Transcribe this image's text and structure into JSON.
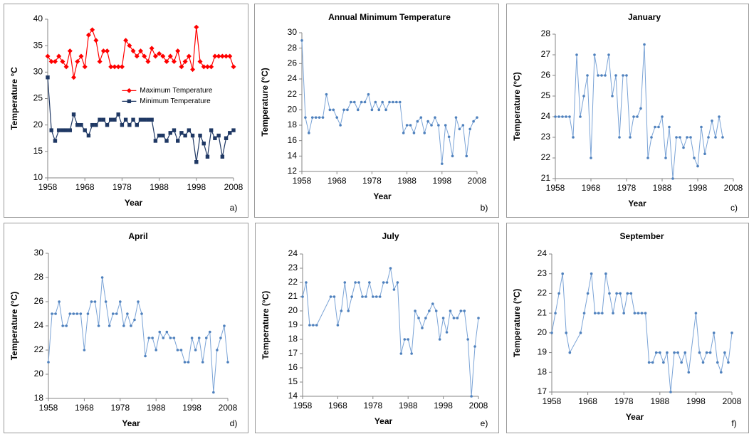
{
  "chart_data": [
    {
      "type": "line",
      "panel_label": "a)",
      "x_label": "Year",
      "y_label": "Temperature °C",
      "legend": "center",
      "x": [
        1958,
        1959,
        1960,
        1961,
        1962,
        1963,
        1964,
        1965,
        1966,
        1967,
        1968,
        1969,
        1970,
        1971,
        1972,
        1973,
        1974,
        1975,
        1976,
        1977,
        1978,
        1979,
        1980,
        1981,
        1982,
        1983,
        1984,
        1985,
        1986,
        1987,
        1988,
        1989,
        1990,
        1991,
        1992,
        1993,
        1994,
        1995,
        1996,
        1997,
        1998,
        1999,
        2000,
        2001,
        2002,
        2003,
        2004,
        2005,
        2006,
        2007,
        2008
      ],
      "series": [
        {
          "name": "Maximum Temperature",
          "color": "#ff0000",
          "marker": "diamond",
          "values": [
            33,
            32,
            32,
            33,
            32,
            31,
            34,
            29,
            32,
            33,
            31,
            37,
            38,
            36,
            32,
            34,
            34,
            31,
            31,
            31,
            31,
            36,
            35,
            34,
            33,
            34,
            33,
            32,
            34.5,
            33,
            33.5,
            33,
            32,
            33,
            32,
            34,
            31,
            32,
            33,
            30.5,
            38.5,
            32,
            31,
            31,
            31,
            33,
            33,
            33,
            33,
            33,
            31
          ]
        },
        {
          "name": "Minimum Temperature",
          "color": "#1f3864",
          "marker": "square",
          "values": [
            29,
            19,
            17,
            19,
            19,
            19,
            19,
            22,
            20,
            20,
            19,
            18,
            20,
            20,
            21,
            21,
            20,
            21,
            21,
            22,
            20,
            21,
            20,
            21,
            20,
            21,
            21,
            21,
            21,
            17,
            18,
            18,
            17,
            18.5,
            19,
            17,
            18.5,
            18,
            19,
            18,
            13,
            18,
            16.5,
            14,
            19,
            17.5,
            18,
            14,
            17.5,
            18.5,
            19
          ]
        }
      ],
      "xlim": [
        1958,
        2008
      ],
      "xticks": [
        1958,
        1968,
        1978,
        1988,
        1998,
        2008
      ],
      "ylim": [
        10,
        40
      ],
      "yticks": [
        10,
        15,
        20,
        25,
        30,
        35,
        40
      ]
    },
    {
      "type": "line",
      "title": "Annual Minimum Temperature",
      "panel_label": "b)",
      "x_label": "Year",
      "y_label": "Temperature  (°C)",
      "x": [
        1958,
        1959,
        1960,
        1961,
        1962,
        1963,
        1964,
        1965,
        1966,
        1967,
        1968,
        1969,
        1970,
        1971,
        1972,
        1973,
        1974,
        1975,
        1976,
        1977,
        1978,
        1979,
        1980,
        1981,
        1982,
        1983,
        1984,
        1985,
        1986,
        1987,
        1988,
        1989,
        1990,
        1991,
        1992,
        1993,
        1994,
        1995,
        1996,
        1997,
        1998,
        1999,
        2000,
        2001,
        2002,
        2003,
        2004,
        2005,
        2006,
        2007,
        2008
      ],
      "series": [
        {
          "color": "#7aa3d6",
          "marker": "circle",
          "values": [
            29,
            19,
            17,
            19,
            19,
            19,
            19,
            22,
            20,
            20,
            19,
            18,
            20,
            20,
            21,
            21,
            20,
            21,
            21,
            22,
            20,
            21,
            20,
            21,
            20,
            21,
            21,
            21,
            21,
            17,
            18,
            18,
            17,
            18.5,
            19,
            17,
            18.5,
            18,
            19,
            18,
            13,
            18,
            16.5,
            14,
            19,
            17.5,
            18,
            14,
            17.5,
            18.5,
            19
          ]
        }
      ],
      "xlim": [
        1958,
        2008
      ],
      "xticks": [
        1958,
        1968,
        1978,
        1988,
        1998,
        2008
      ],
      "ylim": [
        12,
        30
      ],
      "yticks": [
        12,
        14,
        16,
        18,
        20,
        22,
        24,
        26,
        28,
        30
      ]
    },
    {
      "type": "line",
      "title": "January",
      "panel_label": "c)",
      "x_label": "Year",
      "y_label": "Temperature (°C)",
      "x": [
        1958,
        1959,
        1960,
        1961,
        1962,
        1963,
        1964,
        1965,
        1966,
        1967,
        1968,
        1969,
        1970,
        1971,
        1972,
        1973,
        1974,
        1975,
        1976,
        1977,
        1978,
        1979,
        1980,
        1981,
        1982,
        1983,
        1984,
        1985,
        1986,
        1987,
        1988,
        1989,
        1990,
        1991,
        1992,
        1993,
        1994,
        1995,
        1996,
        1997,
        1998,
        1999,
        2000,
        2001,
        2002,
        2003,
        2004,
        2005
      ],
      "series": [
        {
          "color": "#7aa3d6",
          "marker": "circle",
          "values": [
            24,
            24,
            24,
            24,
            24,
            23,
            27,
            24,
            25,
            26,
            22,
            27,
            26,
            26,
            26,
            27,
            25,
            26,
            23,
            26,
            26,
            23,
            24,
            24,
            24.4,
            27.5,
            22,
            23,
            23.5,
            23.5,
            24,
            22,
            23.5,
            21,
            23,
            23,
            22.5,
            23,
            23,
            22,
            21.6,
            23.5,
            22.2,
            23,
            23.8,
            23,
            24,
            23
          ]
        }
      ],
      "xlim": [
        1958,
        2008
      ],
      "xticks": [
        1958,
        1968,
        1978,
        1988,
        1998,
        2008
      ],
      "ylim": [
        21,
        28
      ],
      "yticks": [
        21,
        22,
        23,
        24,
        25,
        26,
        27,
        28
      ]
    },
    {
      "type": "line",
      "title": "April",
      "panel_label": "d)",
      "x_label": "Year",
      "y_label": "Temperature (°C)",
      "x": [
        1958,
        1959,
        1960,
        1961,
        1962,
        1963,
        1964,
        1965,
        1966,
        1967,
        1968,
        1969,
        1970,
        1971,
        1972,
        1973,
        1974,
        1975,
        1976,
        1977,
        1978,
        1979,
        1980,
        1981,
        1982,
        1983,
        1984,
        1985,
        1986,
        1987,
        1988,
        1989,
        1990,
        1991,
        1992,
        1993,
        1994,
        1995,
        1996,
        1997,
        1998,
        1999,
        2000,
        2001,
        2002,
        2003,
        2004,
        2005,
        2006,
        2007,
        2008
      ],
      "series": [
        {
          "color": "#7aa3d6",
          "marker": "circle",
          "values": [
            21,
            25,
            25,
            26,
            24,
            24,
            25,
            25,
            25,
            25,
            22,
            25,
            26,
            26,
            24,
            28,
            26,
            24,
            25,
            25,
            26,
            24,
            25,
            24,
            24.5,
            26,
            25,
            21.5,
            23,
            23,
            22,
            23.5,
            23,
            23.5,
            23,
            23,
            22,
            22,
            21,
            21,
            23,
            22,
            23,
            21,
            23,
            23.5,
            18.5,
            22,
            23,
            24,
            21
          ]
        }
      ],
      "xlim": [
        1958,
        2008
      ],
      "xticks": [
        1958,
        1968,
        1978,
        1988,
        1998,
        2008
      ],
      "ylim": [
        18,
        30
      ],
      "yticks": [
        18,
        20,
        22,
        24,
        26,
        28,
        30
      ]
    },
    {
      "type": "line",
      "title": "July",
      "panel_label": "e)",
      "x_label": "Year",
      "y_label": "Temperature (°C)",
      "x": [
        1958,
        1959,
        1960,
        1961,
        1962,
        1966,
        1967,
        1968,
        1969,
        1970,
        1971,
        1972,
        1973,
        1974,
        1975,
        1976,
        1977,
        1978,
        1979,
        1980,
        1981,
        1982,
        1983,
        1984,
        1985,
        1986,
        1987,
        1988,
        1989,
        1990,
        1991,
        1992,
        1993,
        1994,
        1995,
        1996,
        1997,
        1998,
        1999,
        2000,
        2001,
        2002,
        2003,
        2004,
        2005,
        2006,
        2007,
        2008
      ],
      "series": [
        {
          "color": "#7aa3d6",
          "marker": "circle",
          "values": [
            21,
            22,
            19,
            19,
            19,
            21,
            21,
            19,
            20,
            22,
            20,
            21,
            22,
            22,
            21,
            21,
            22,
            21,
            21,
            21,
            22,
            22,
            23,
            21.5,
            22,
            17,
            18,
            18,
            17,
            20,
            19.5,
            18.8,
            19.5,
            20,
            20.5,
            20,
            18,
            19.5,
            18.5,
            20,
            19.5,
            19.5,
            20,
            20,
            18,
            14,
            17.5,
            19.5
          ]
        }
      ],
      "xlim": [
        1958,
        2008
      ],
      "xticks": [
        1958,
        1968,
        1978,
        1988,
        1998,
        2008
      ],
      "ylim": [
        14,
        24
      ],
      "yticks": [
        14,
        15,
        16,
        17,
        18,
        19,
        20,
        21,
        22,
        23,
        24
      ]
    },
    {
      "type": "line",
      "title": "September",
      "panel_label": "f)",
      "x_label": "Year",
      "y_label": "Temperature (°C)",
      "x": [
        1958,
        1959,
        1960,
        1961,
        1962,
        1963,
        1966,
        1967,
        1968,
        1969,
        1970,
        1971,
        1972,
        1973,
        1974,
        1975,
        1976,
        1977,
        1978,
        1979,
        1980,
        1981,
        1982,
        1983,
        1984,
        1985,
        1986,
        1987,
        1988,
        1989,
        1990,
        1991,
        1992,
        1993,
        1994,
        1995,
        1996,
        1998,
        1999,
        2000,
        2001,
        2002,
        2003,
        2004,
        2005,
        2006,
        2007,
        2008
      ],
      "series": [
        {
          "color": "#7aa3d6",
          "marker": "circle",
          "values": [
            20,
            21,
            22,
            23,
            20,
            19,
            20,
            21,
            22,
            23,
            21,
            21,
            21,
            23,
            22,
            21,
            22,
            22,
            21,
            22,
            22,
            21,
            21,
            21,
            21,
            18.5,
            18.5,
            19,
            19,
            18.5,
            19,
            17,
            19,
            19,
            18.5,
            19,
            18,
            21,
            19,
            18.5,
            19,
            19,
            20,
            18.5,
            18,
            19,
            18.5,
            20
          ]
        }
      ],
      "xlim": [
        1958,
        2008
      ],
      "xticks": [
        1958,
        1968,
        1978,
        1988,
        1998,
        2008
      ],
      "ylim": [
        17,
        24
      ],
      "yticks": [
        17,
        18,
        19,
        20,
        21,
        22,
        23,
        24
      ]
    }
  ]
}
